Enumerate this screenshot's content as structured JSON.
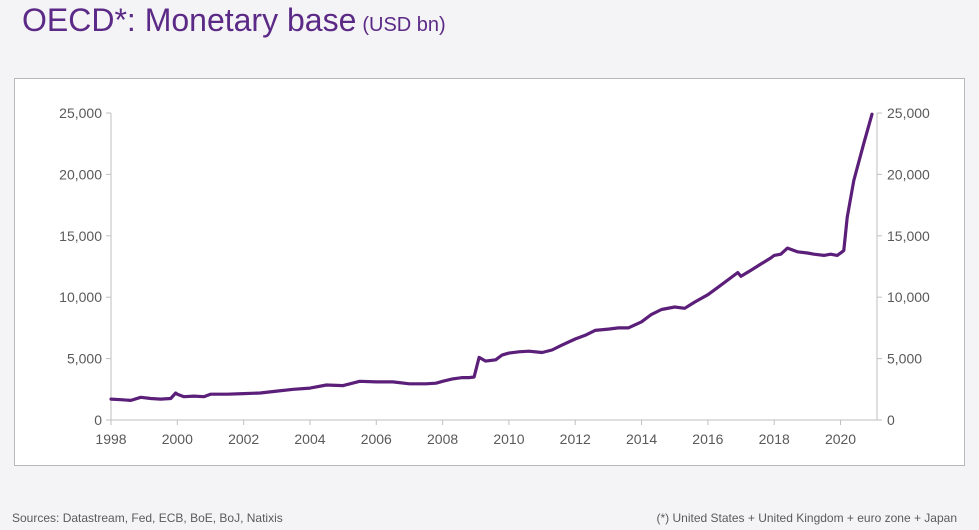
{
  "header": {
    "title": "OECD*: Monetary base",
    "unit": "(USD bn)"
  },
  "footer": {
    "sources": "Sources: Datastream, Fed, ECB, BoE, BoJ, Natixis",
    "note": "(*) United States + United Kingdom + euro zone + Japan"
  },
  "colors": {
    "line": "#5b1f7a",
    "title": "#5b2a86",
    "axis": "#bfbfbf",
    "text": "#595959"
  },
  "chart_data": {
    "type": "line",
    "title": "OECD*: Monetary base",
    "subtitle": "(USD bn)",
    "xlabel": "",
    "ylabel": "",
    "xlim": [
      1998,
      2021.1
    ],
    "ylim": [
      0,
      25000
    ],
    "grid": false,
    "x_ticks": [
      "1998",
      "2000",
      "2002",
      "2004",
      "2006",
      "2008",
      "2010",
      "2012",
      "2014",
      "2016",
      "2018",
      "2020"
    ],
    "x_tick_values": [
      1998,
      2000,
      2002,
      2004,
      2006,
      2008,
      2010,
      2012,
      2014,
      2016,
      2018,
      2020
    ],
    "y_ticks_left": [
      "0",
      "5,000",
      "10,000",
      "15,000",
      "20,000",
      "25,000"
    ],
    "y_ticks_right": [
      "0",
      "5,000",
      "10,000",
      "15,000",
      "20,000",
      "25,000"
    ],
    "y_tick_values": [
      0,
      5000,
      10000,
      15000,
      20000,
      25000
    ],
    "series": [
      {
        "x": [
          1998.0,
          1998.3,
          1998.6,
          1998.9,
          1999.2,
          1999.5,
          1999.8,
          1999.95,
          2000.0,
          2000.2,
          2000.5,
          2000.8,
          2001.0,
          2001.5,
          2002.0,
          2002.5,
          2003.0,
          2003.5,
          2004.0,
          2004.5,
          2005.0,
          2005.5,
          2006.0,
          2006.5,
          2007.0,
          2007.5,
          2007.8,
          2008.0,
          2008.3,
          2008.6,
          2008.8,
          2008.95,
          2009.1,
          2009.3,
          2009.6,
          2009.8,
          2010.0,
          2010.3,
          2010.6,
          2011.0,
          2011.3,
          2011.6,
          2012.0,
          2012.3,
          2012.6,
          2013.0,
          2013.3,
          2013.6,
          2014.0,
          2014.3,
          2014.6,
          2015.0,
          2015.3,
          2015.6,
          2016.0,
          2016.3,
          2016.6,
          2016.9,
          2017.0,
          2017.3,
          2017.6,
          2017.9,
          2018.0,
          2018.2,
          2018.4,
          2018.7,
          2019.0,
          2019.2,
          2019.5,
          2019.7,
          2019.9,
          2020.05,
          2020.1,
          2020.2,
          2020.4,
          2020.7,
          2020.95
        ],
        "y": [
          1700,
          1650,
          1600,
          1850,
          1750,
          1700,
          1750,
          2200,
          2100,
          1900,
          1950,
          1900,
          2100,
          2100,
          2150,
          2200,
          2350,
          2500,
          2600,
          2850,
          2800,
          3150,
          3100,
          3100,
          2950,
          2950,
          3000,
          3150,
          3350,
          3450,
          3450,
          3500,
          5100,
          4800,
          4900,
          5300,
          5450,
          5550,
          5600,
          5500,
          5700,
          6100,
          6600,
          6900,
          7300,
          7400,
          7500,
          7500,
          8000,
          8600,
          9000,
          9200,
          9100,
          9600,
          10200,
          10800,
          11400,
          12000,
          11700,
          12200,
          12700,
          13200,
          13400,
          13500,
          14000,
          13700,
          13600,
          13500,
          13400,
          13500,
          13400,
          13700,
          13800,
          16500,
          19500,
          22500,
          24900
        ]
      }
    ]
  }
}
